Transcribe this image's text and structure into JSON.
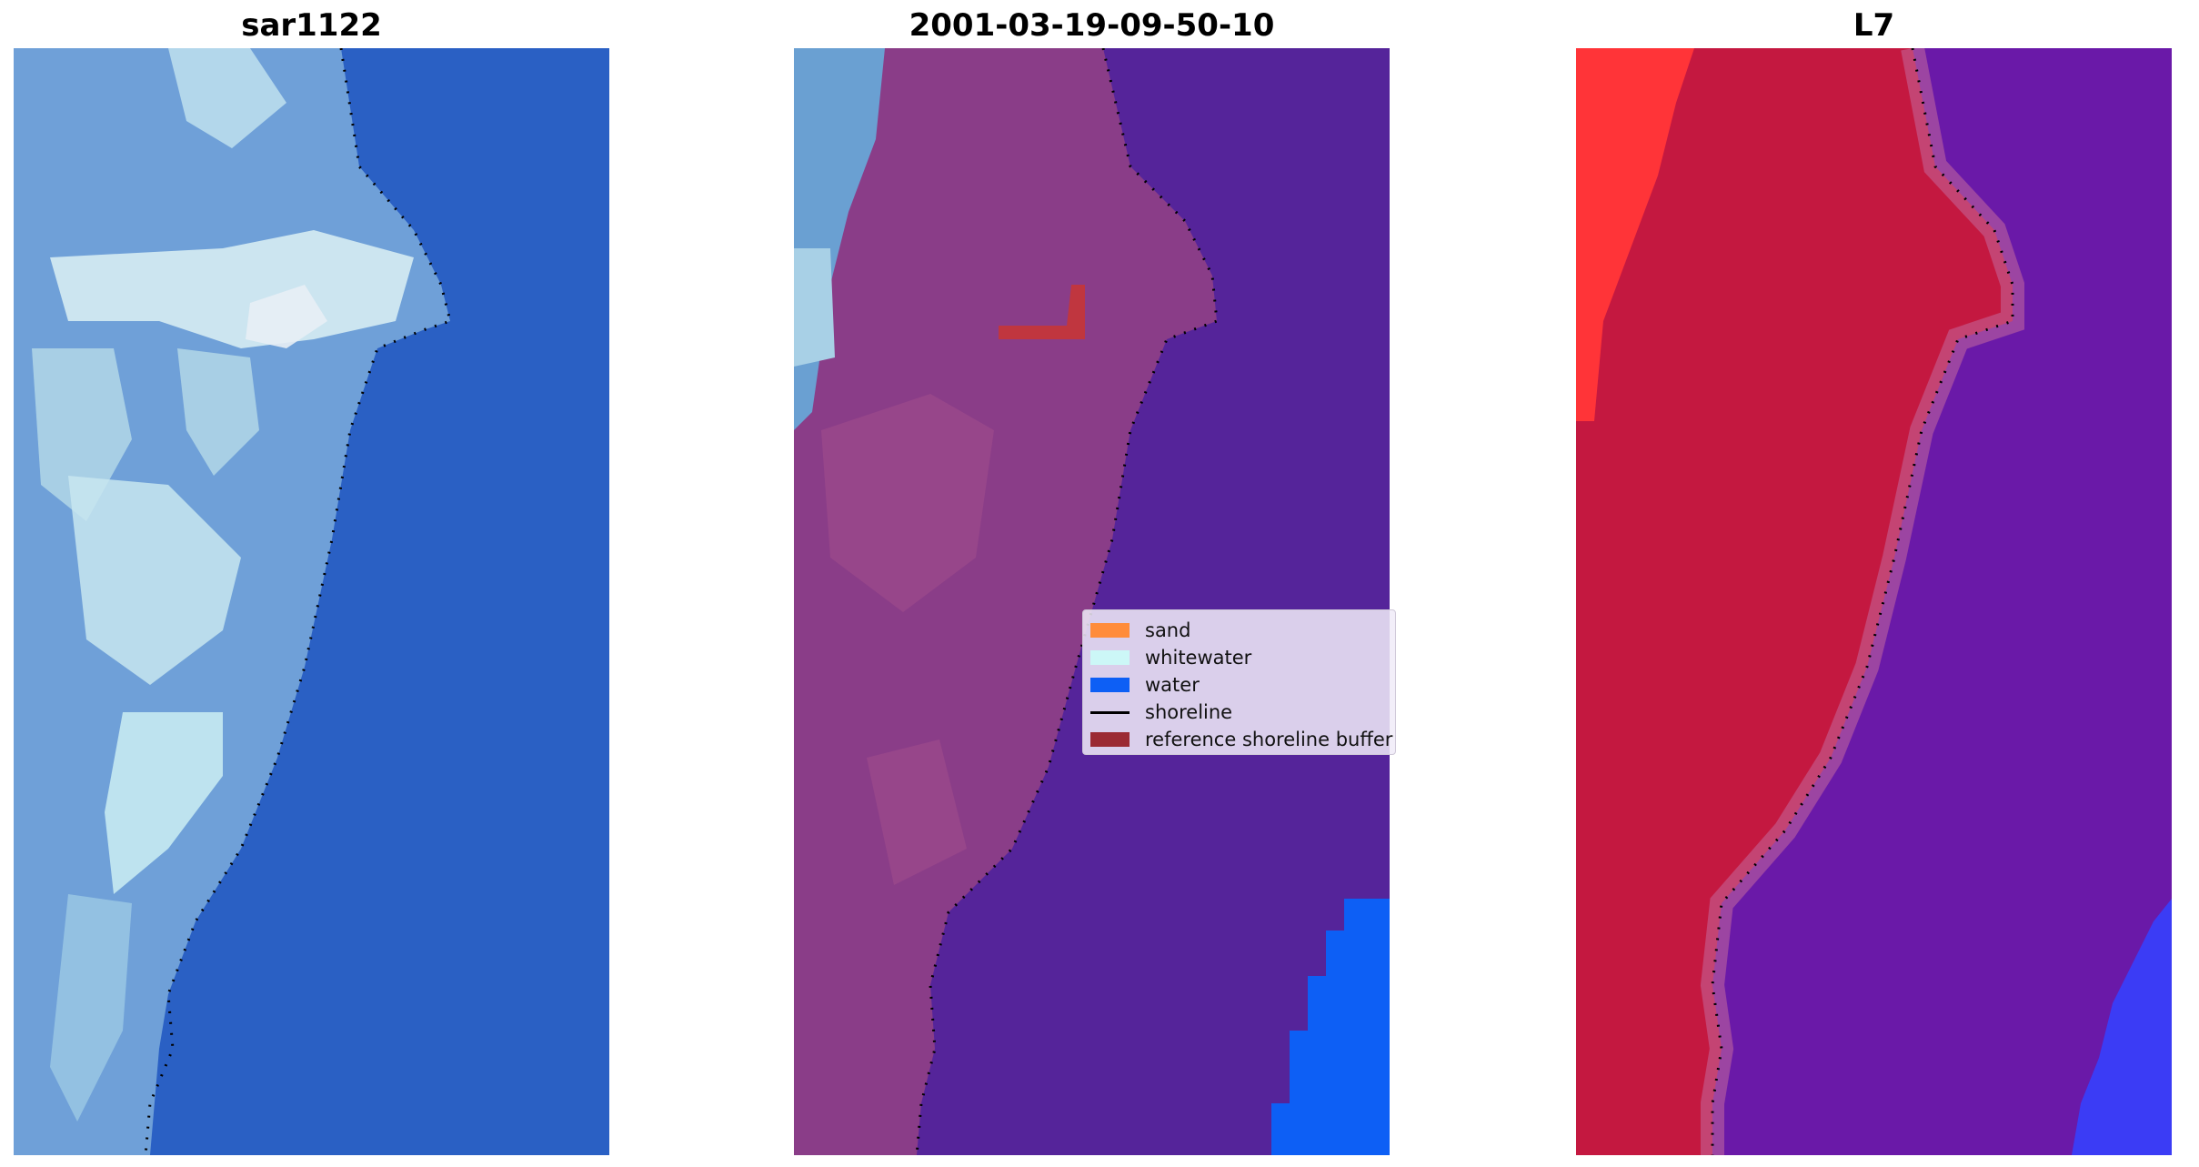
{
  "panels": [
    {
      "title": "sar1122",
      "icon": "rgb-image-icon"
    },
    {
      "title": "2001-03-19-09-50-10",
      "icon": "classified-image-icon"
    },
    {
      "title": "L7",
      "icon": "index-image-icon"
    }
  ],
  "legend": {
    "items": [
      {
        "label": "sand",
        "color": "#ff8c3a",
        "type": "patch"
      },
      {
        "label": "whitewater",
        "color": "#ccf7f7",
        "type": "patch"
      },
      {
        "label": "water",
        "color": "#0d5ff5",
        "type": "patch"
      },
      {
        "label": "shoreline",
        "color": "#000000",
        "type": "line"
      },
      {
        "label": "reference shoreline buffer",
        "color": "#9b2a33",
        "type": "patch"
      }
    ]
  },
  "colors": {
    "ocean_blue": "#2a60c4",
    "land_blue": "#6fa0d8",
    "whitewater": "#d8ecf5",
    "class_land": "#8a3d88",
    "class_water": "#55249a",
    "class_water_bright": "#0d5ff5",
    "class_strip": "#c0609a",
    "buffer": "#c0363f",
    "index_land": "#c41840",
    "index_water": "#6a19a8",
    "index_bright_red": "#ff3438",
    "index_bright_blue": "#3b3cf5"
  }
}
